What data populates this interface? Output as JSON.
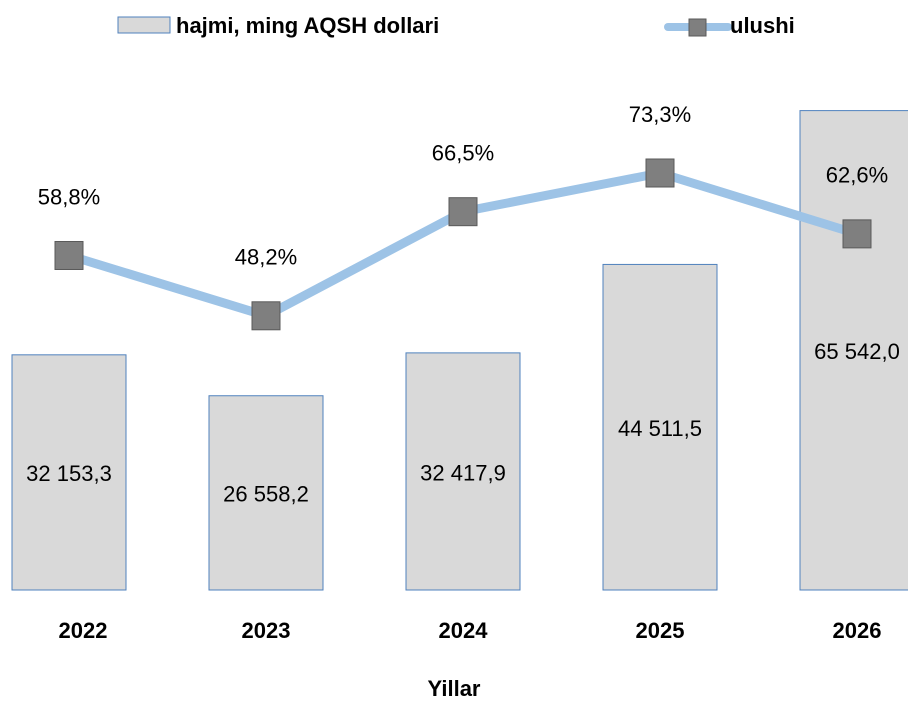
{
  "chart_data": {
    "type": "bar-line",
    "categories": [
      "2022",
      "2023",
      "2024",
      "2025",
      "2026"
    ],
    "x_label": "Yillar",
    "ylim": [
      0,
      70000
    ],
    "y2lim": [
      0,
      90
    ],
    "series": [
      {
        "name": "hajmi, ming AQSH dollari",
        "type": "bar",
        "color": "#d9d9d9",
        "edge_color": "#4f81bd",
        "values": [
          32153.3,
          26558.2,
          32417.9,
          44511.5,
          65542.0
        ],
        "value_labels": [
          "32 153,3",
          "26 558,2",
          "32 417,9",
          "44 511,5",
          "65 542,0"
        ]
      },
      {
        "name": "ulushi",
        "type": "line",
        "axis": "y2",
        "color": "#9dc3e6",
        "marker_color": "#7f7f7f",
        "values": [
          58.8,
          48.2,
          66.5,
          73.3,
          62.6
        ],
        "value_labels": [
          "58,8%",
          "48,2%",
          "66,5%",
          "73,3%",
          "62,6%"
        ]
      }
    ],
    "legend": "top"
  }
}
